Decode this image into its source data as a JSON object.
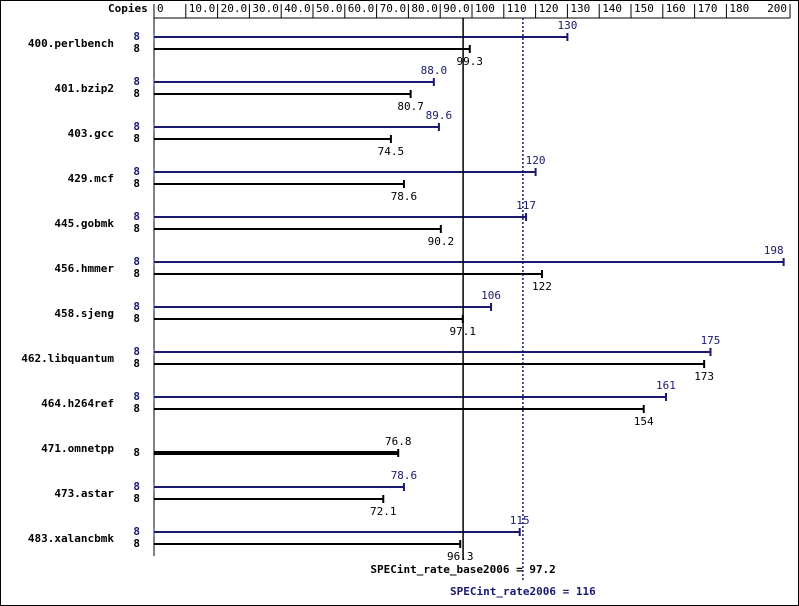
{
  "chart_data": {
    "type": "bar",
    "orientation": "horizontal",
    "x_axis_label": "Copies",
    "categories": [
      "400.perlbench",
      "401.bzip2",
      "403.gcc",
      "429.mcf",
      "445.gobmk",
      "456.hmmer",
      "458.sjeng",
      "462.libquantum",
      "464.h264ref",
      "471.omnetpp",
      "473.astar",
      "483.xalancbmk"
    ],
    "series": [
      {
        "color": "#191970",
        "copies": [
          "8",
          "8",
          "8",
          "8",
          "8",
          "8",
          "8",
          "8",
          "8",
          null,
          "8",
          "8"
        ],
        "values": [
          130,
          88.0,
          89.6,
          120,
          117,
          198,
          106,
          175,
          161,
          null,
          78.6,
          115
        ],
        "value_labels": [
          "130",
          "88.0",
          "89.6",
          "120",
          "117",
          "198",
          "106",
          "175",
          "161",
          null,
          "78.6",
          "115"
        ]
      },
      {
        "color": "#000000",
        "copies": [
          "8",
          "8",
          "8",
          "8",
          "8",
          "8",
          "8",
          "8",
          "8",
          "8",
          "8",
          "8"
        ],
        "values": [
          99.3,
          80.7,
          74.5,
          78.6,
          90.2,
          122,
          97.1,
          173,
          154,
          76.8,
          72.1,
          96.3
        ],
        "value_labels": [
          "99.3",
          "80.7",
          "74.5",
          "78.6",
          "90.2",
          "122",
          "97.1",
          "173",
          "154",
          "76.8",
          "72.1",
          "96.3"
        ]
      }
    ],
    "xlim": [
      0,
      200
    ],
    "xticks": [
      0,
      {
        "value": 10,
        "label": "10.0"
      },
      {
        "value": 20,
        "label": "20.0"
      },
      {
        "value": 30,
        "label": "30.0"
      },
      {
        "value": 40,
        "label": "40.0"
      },
      {
        "value": 50,
        "label": "50.0"
      },
      {
        "value": 60,
        "label": "60.0"
      },
      {
        "value": 70,
        "label": "70.0"
      },
      {
        "value": 80,
        "label": "80.0"
      },
      {
        "value": 90,
        "label": "90.0"
      },
      100,
      110,
      120,
      130,
      140,
      150,
      160,
      170,
      180,
      200
    ],
    "reference_lines": [
      {
        "value": 97.2,
        "label": "SPECint_rate_base2006 = 97.2",
        "color": "#000000",
        "dashed": false
      },
      {
        "value": 116,
        "label": "SPECint_rate2006 = 116",
        "color": "#191970",
        "dashed": true
      }
    ]
  }
}
